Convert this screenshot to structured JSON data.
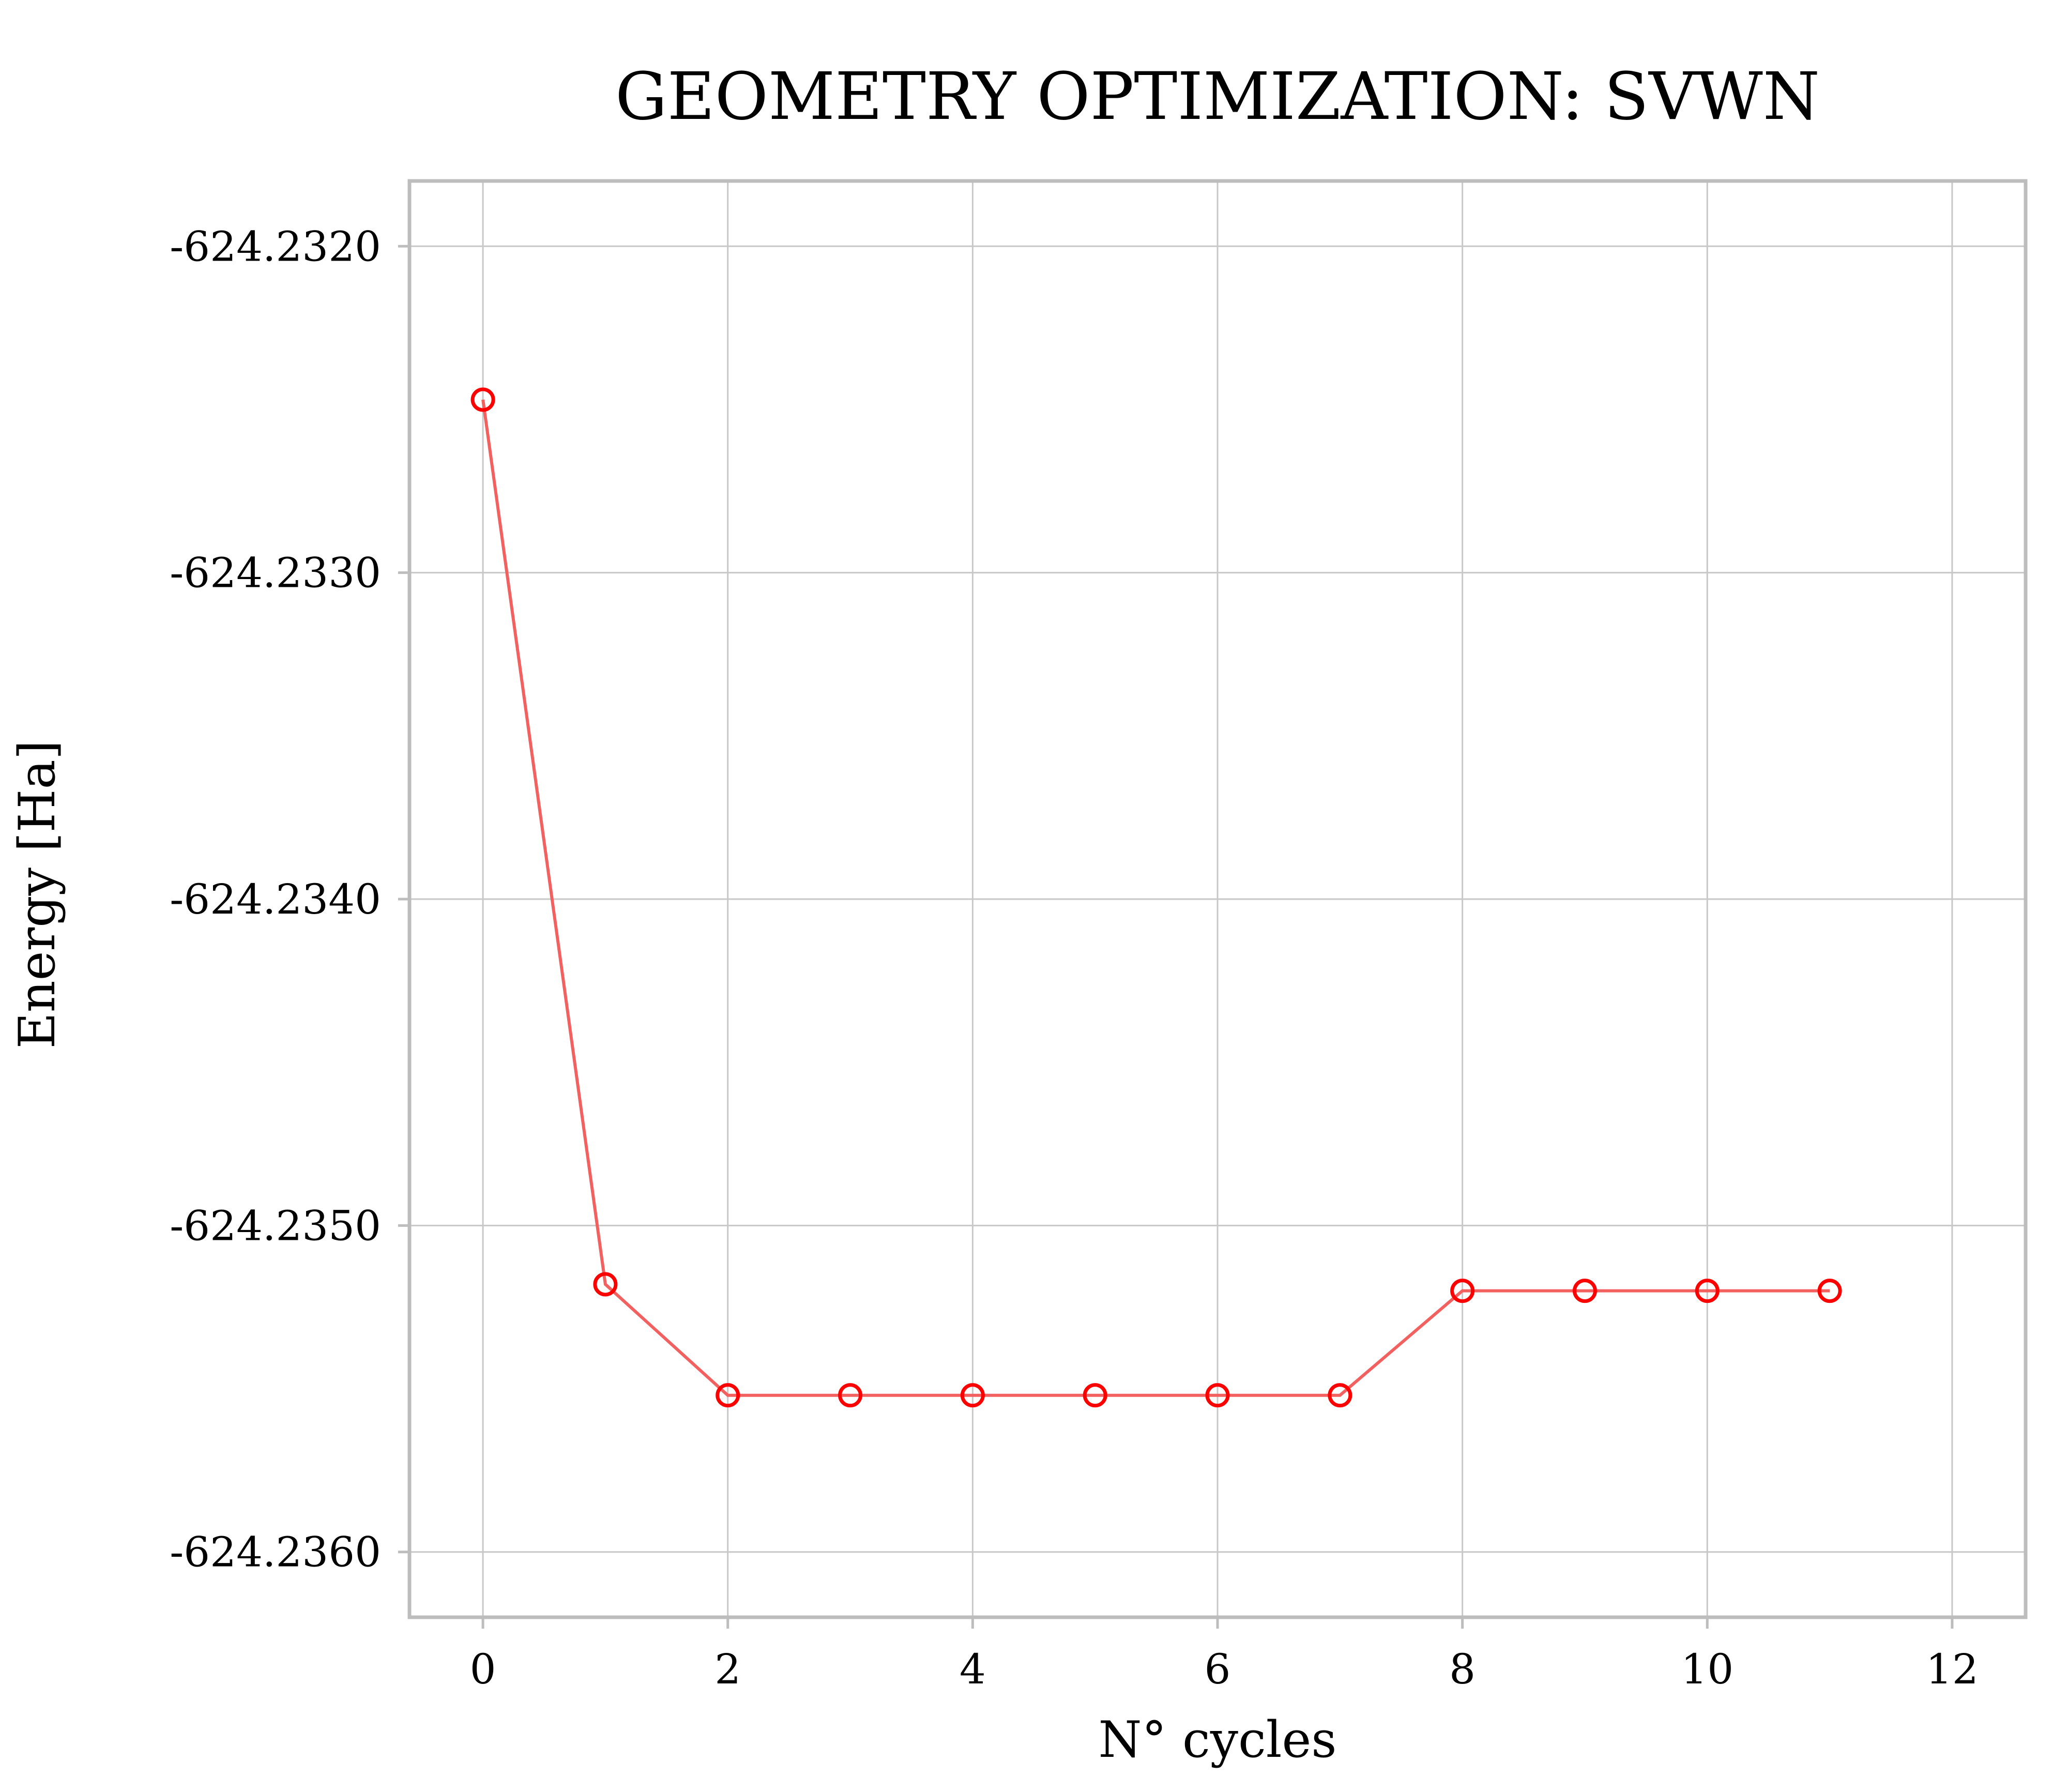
{
  "chart_data": {
    "type": "line",
    "title": "GEOMETRY OPTIMIZATION: SVWN",
    "xlabel": "N° cycles",
    "ylabel": "Energy [Ha]",
    "xlim": [
      -0.6,
      12.6
    ],
    "ylim": [
      -624.2362,
      -624.2318
    ],
    "x_ticks": [
      0,
      2,
      4,
      6,
      8,
      10,
      12
    ],
    "x_tick_labels": [
      "0",
      "2",
      "4",
      "6",
      "8",
      "10",
      "12"
    ],
    "y_ticks": [
      -624.232,
      -624.233,
      -624.234,
      -624.235,
      -624.236
    ],
    "y_tick_labels": [
      "-624.2320",
      "-624.2330",
      "-624.2340",
      "-624.2350",
      "-624.2360"
    ],
    "grid": true,
    "legend": false,
    "series": [
      {
        "color": "#ff0000",
        "line_color": "#f26060",
        "marker": "open-circle",
        "x": [
          0,
          1,
          2,
          3,
          4,
          5,
          6,
          7,
          8,
          9,
          10,
          11
        ],
        "y": [
          -624.23247,
          -624.23518,
          -624.23552,
          -624.23552,
          -624.23552,
          -624.23552,
          -624.23552,
          -624.23552,
          -624.2352,
          -624.2352,
          -624.2352,
          -624.2352
        ]
      }
    ]
  }
}
